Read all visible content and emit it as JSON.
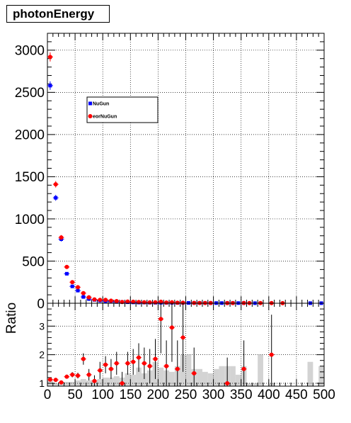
{
  "title": "photonEnergy",
  "ratio_label": "Ratio",
  "legend": [
    {
      "label": "NuGun",
      "color": "#0000ff"
    },
    {
      "label": "eorNuGun",
      "color": "#ff0000"
    }
  ],
  "chart_data": [
    {
      "type": "scatter",
      "panel": "main",
      "xlim": [
        0,
        500
      ],
      "ylim": [
        0,
        3200
      ],
      "xticks": [
        0,
        50,
        100,
        150,
        200,
        250,
        300,
        350,
        400,
        450,
        500
      ],
      "yticks": [
        0,
        500,
        1000,
        1500,
        2000,
        2500,
        3000
      ],
      "grid": true,
      "legend_position": "top-center",
      "series": [
        {
          "name": "NuGun",
          "color": "#0000ff",
          "marker": "square",
          "x": [
            5,
            15,
            25,
            35,
            45,
            55,
            65,
            75,
            85,
            95,
            105,
            115,
            125,
            135,
            145,
            155,
            165,
            175,
            185,
            195,
            205,
            215,
            225,
            235,
            245,
            255,
            265,
            275,
            285,
            295,
            305,
            315,
            325,
            335,
            345,
            355,
            375,
            475,
            495
          ],
          "y": [
            2580,
            1250,
            760,
            350,
            200,
            150,
            75,
            50,
            40,
            30,
            25,
            20,
            15,
            15,
            12,
            10,
            8,
            8,
            7,
            6,
            6,
            5,
            5,
            4,
            4,
            4,
            3,
            3,
            3,
            2,
            2,
            2,
            2,
            2,
            2,
            2,
            1,
            1,
            1
          ],
          "yerr": [
            50,
            35,
            28,
            19,
            14,
            12,
            9,
            7,
            6,
            5,
            5,
            4,
            4,
            4,
            3,
            3,
            3,
            3,
            3,
            2,
            2,
            2,
            2,
            2,
            2,
            2,
            2,
            2,
            2,
            1,
            1,
            1,
            1,
            1,
            1,
            1,
            1,
            1,
            1
          ]
        },
        {
          "name": "eorNuGun",
          "color": "#ff0000",
          "marker": "circle",
          "x": [
            5,
            15,
            25,
            35,
            45,
            55,
            65,
            75,
            85,
            95,
            105,
            115,
            125,
            135,
            145,
            155,
            165,
            175,
            185,
            195,
            205,
            215,
            225,
            235,
            245,
            265,
            275,
            285,
            295,
            325,
            335,
            355,
            365,
            385,
            405,
            425
          ],
          "y": [
            2920,
            1410,
            780,
            430,
            250,
            190,
            120,
            70,
            45,
            40,
            40,
            30,
            25,
            15,
            20,
            18,
            15,
            12,
            10,
            12,
            18,
            8,
            12,
            6,
            6,
            4,
            3,
            3,
            3,
            2,
            2,
            3,
            2,
            2,
            2,
            1
          ],
          "yerr": [
            54,
            38,
            28,
            21,
            16,
            14,
            11,
            8,
            7,
            6,
            6,
            5,
            5,
            4,
            4,
            4,
            4,
            3,
            3,
            3,
            4,
            3,
            3,
            2,
            2,
            2,
            2,
            2,
            2,
            1,
            1,
            2,
            1,
            1,
            1,
            1
          ]
        }
      ]
    },
    {
      "type": "bar",
      "panel": "ratio",
      "ylabel": "Ratio",
      "xlim": [
        0,
        500
      ],
      "ylim": [
        0.9,
        3.8
      ],
      "xticks": [
        0,
        50,
        100,
        150,
        200,
        250,
        300,
        350,
        400,
        450,
        500
      ],
      "yticks": [
        1,
        2,
        3
      ],
      "grid": true,
      "bins": {
        "color": "#d3d3d3",
        "x": [
          5,
          15,
          25,
          35,
          45,
          55,
          65,
          75,
          85,
          95,
          105,
          115,
          125,
          135,
          145,
          155,
          165,
          175,
          185,
          195,
          205,
          215,
          225,
          235,
          245,
          255,
          265,
          275,
          285,
          295,
          305,
          315,
          325,
          335,
          345,
          355,
          365,
          375,
          385,
          405,
          475,
          495
        ],
        "values": [
          1.1,
          1.0,
          1.05,
          1.05,
          1.05,
          1.1,
          1.15,
          1.1,
          1.1,
          1.15,
          1.2,
          1.2,
          1.25,
          1.2,
          1.35,
          1.3,
          1.55,
          1.35,
          1.45,
          1.75,
          1.55,
          1.45,
          1.4,
          1.6,
          2.0,
          2.0,
          1.5,
          1.5,
          1.4,
          1.35,
          1.5,
          1.6,
          1.6,
          1.6,
          1.3,
          1.6,
          1.0,
          1.0,
          2.0,
          1.0,
          1.75,
          1.6
        ]
      },
      "series": [
        {
          "color": "#ff0000",
          "x": [
            5,
            15,
            25,
            35,
            45,
            55,
            65,
            75,
            85,
            95,
            105,
            115,
            125,
            135,
            145,
            155,
            165,
            175,
            185,
            195,
            205,
            215,
            225,
            235,
            245,
            265,
            325,
            355,
            405
          ],
          "y": [
            1.13,
            1.12,
            1.03,
            1.23,
            1.3,
            1.27,
            1.85,
            1.3,
            1.08,
            1.45,
            1.65,
            1.5,
            1.7,
            1.0,
            1.7,
            1.75,
            1.9,
            1.7,
            1.6,
            1.85,
            3.25,
            1.6,
            2.95,
            1.5,
            2.6,
            1.35,
            1.0,
            1.5,
            2.0
          ],
          "yerr": [
            0.03,
            0.04,
            0.05,
            0.07,
            0.09,
            0.1,
            0.2,
            0.2,
            0.2,
            0.3,
            0.3,
            0.35,
            0.4,
            0.4,
            0.4,
            0.45,
            0.5,
            0.55,
            0.6,
            0.7,
            1.2,
            0.9,
            1.2,
            1.0,
            1.2,
            0.9,
            0.9,
            1.0,
            1.4
          ]
        }
      ]
    }
  ]
}
